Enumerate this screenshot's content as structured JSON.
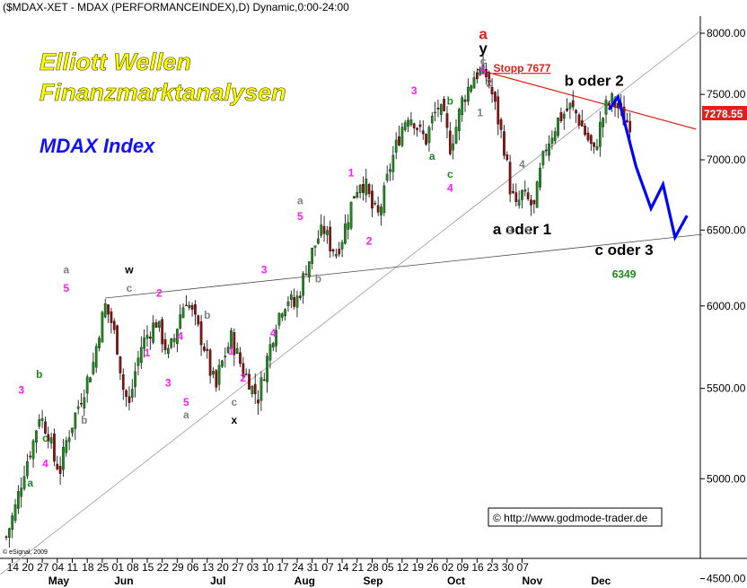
{
  "header": {
    "title": "($MDAX-XET - MDAX (PERFORMANCEINDEX),D) Dynamic,0:00-24:00"
  },
  "branding": {
    "line1": "Elliott Wellen",
    "line2": "Finanzmarktanalysen",
    "index_name": "MDAX Index"
  },
  "footer": {
    "copyright": "© http://www.godmode-trader.de",
    "esignal": "© eSignal, 2009"
  },
  "price_tag": {
    "value": "7278.55",
    "color": "#e0201a"
  },
  "colors": {
    "up_candle": "#1a8a1a",
    "down_candle": "#8b1010",
    "wave_magenta": "#ff1aff",
    "wave_gray": "#808080",
    "wave_green": "#1a8a1a",
    "projection": "#0000ff",
    "stop_line": "#e0201a"
  },
  "chart_data": {
    "type": "candlestick",
    "title": "($MDAX-XET - MDAX (PERFORMANCEINDEX),D) Dynamic,0:00-24:00",
    "y_scale": "log",
    "ylim": [
      4400,
      8200
    ],
    "y_ticks": [
      "4500.00",
      "5000.00",
      "5500.00",
      "6000.00",
      "6500.00",
      "7000.00",
      "7500.00",
      "8000.00"
    ],
    "x_ticks": [
      "14",
      "20",
      "27",
      "04",
      "11",
      "18",
      "25",
      "01",
      "08",
      "15",
      "22",
      "29",
      "06",
      "13",
      "20",
      "27",
      "03",
      "10",
      "17",
      "24",
      "31",
      "07",
      "14",
      "21",
      "28",
      "05",
      "12",
      "19",
      "26",
      "02",
      "09",
      "16",
      "23",
      "30",
      "07"
    ],
    "months": [
      "May",
      "Jun",
      "Jul",
      "Aug",
      "Sep",
      "Oct",
      "Nov",
      "Dec"
    ],
    "grid": false,
    "close_path": [
      [
        0,
        4700
      ],
      [
        3,
        4850
      ],
      [
        6,
        5050
      ],
      [
        9,
        5200
      ],
      [
        11,
        5350
      ],
      [
        14,
        5250
      ],
      [
        16,
        5100
      ],
      [
        18,
        5050
      ],
      [
        20,
        5200
      ],
      [
        23,
        5350
      ],
      [
        26,
        5500
      ],
      [
        29,
        5650
      ],
      [
        31,
        5850
      ],
      [
        33,
        6000
      ],
      [
        35,
        5900
      ],
      [
        37,
        5750
      ],
      [
        39,
        5500
      ],
      [
        41,
        5400
      ],
      [
        43,
        5600
      ],
      [
        45,
        5750
      ],
      [
        48,
        5850
      ],
      [
        50,
        5900
      ],
      [
        52,
        5800
      ],
      [
        54,
        5700
      ],
      [
        56,
        5800
      ],
      [
        58,
        5950
      ],
      [
        60,
        6050
      ],
      [
        62,
        5950
      ],
      [
        64,
        5850
      ],
      [
        66,
        5750
      ],
      [
        68,
        5600
      ],
      [
        70,
        5500
      ],
      [
        71,
        5600
      ],
      [
        73,
        5700
      ],
      [
        75,
        5800
      ],
      [
        77,
        5700
      ],
      [
        79,
        5600
      ],
      [
        81,
        5550
      ],
      [
        82,
        5500
      ],
      [
        84,
        5450
      ],
      [
        86,
        5600
      ],
      [
        88,
        5750
      ],
      [
        90,
        5900
      ],
      [
        92,
        6000
      ],
      [
        94,
        6050
      ],
      [
        96,
        6000
      ],
      [
        98,
        6100
      ],
      [
        100,
        6250
      ],
      [
        102,
        6350
      ],
      [
        104,
        6450
      ],
      [
        106,
        6500
      ],
      [
        108,
        6400
      ],
      [
        110,
        6350
      ],
      [
        112,
        6450
      ],
      [
        114,
        6600
      ],
      [
        116,
        6750
      ],
      [
        118,
        6850
      ],
      [
        120,
        6800
      ],
      [
        122,
        6650
      ],
      [
        124,
        6600
      ],
      [
        126,
        6750
      ],
      [
        128,
        6950
      ],
      [
        130,
        7100
      ],
      [
        132,
        7250
      ],
      [
        134,
        7350
      ],
      [
        136,
        7300
      ],
      [
        138,
        7200
      ],
      [
        140,
        7150
      ],
      [
        142,
        7300
      ],
      [
        144,
        7400
      ],
      [
        146,
        7300
      ],
      [
        148,
        7100
      ],
      [
        150,
        7250
      ],
      [
        152,
        7450
      ],
      [
        154,
        7550
      ],
      [
        156,
        7650
      ],
      [
        158,
        7680
      ],
      [
        160,
        7650
      ],
      [
        162,
        7500
      ],
      [
        164,
        7300
      ],
      [
        166,
        7100
      ],
      [
        168,
        6800
      ],
      [
        170,
        6650
      ],
      [
        172,
        6750
      ],
      [
        174,
        6700
      ],
      [
        176,
        6650
      ],
      [
        178,
        6900
      ],
      [
        180,
        7100
      ],
      [
        182,
        7200
      ],
      [
        184,
        7300
      ],
      [
        186,
        7350
      ],
      [
        188,
        7400
      ],
      [
        190,
        7350
      ],
      [
        192,
        7250
      ],
      [
        194,
        7150
      ],
      [
        196,
        7050
      ],
      [
        198,
        7250
      ],
      [
        200,
        7400
      ],
      [
        202,
        7450
      ],
      [
        204,
        7400
      ],
      [
        206,
        7300
      ],
      [
        208,
        7280
      ]
    ],
    "trendlines": [
      {
        "name": "lower-channel",
        "from": [
          -2,
          4520
        ],
        "to": [
          232,
          8030
        ]
      },
      {
        "name": "wx-line",
        "from": [
          33,
          6050
        ],
        "to": [
          232,
          6470
        ]
      },
      {
        "name": "stopp-line",
        "from": [
          157,
          7700
        ],
        "to": [
          230,
          7230
        ]
      }
    ],
    "projection_path": [
      [
        201,
        7380
      ],
      [
        204,
        7480
      ],
      [
        210,
        6950
      ],
      [
        215,
        6650
      ],
      [
        219,
        6820
      ],
      [
        223,
        6450
      ],
      [
        227,
        6600
      ]
    ],
    "annotations": [
      {
        "text": "a",
        "i": 159,
        "v": 7950,
        "color": "#e0201a",
        "size": "big"
      },
      {
        "text": "y",
        "i": 159,
        "v": 7830,
        "color": "#000000",
        "size": "big"
      },
      {
        "text": "c",
        "i": 159,
        "v": 7740,
        "color": "#808080"
      },
      {
        "text": "5",
        "i": 159,
        "v": 7660,
        "color": "#ff1aff"
      },
      {
        "text": "Stopp 7677",
        "i": 172,
        "v": 7680,
        "color": "#e0201a",
        "size": "stop"
      },
      {
        "text": "b oder 2",
        "i": 196,
        "v": 7570,
        "color": "#000000",
        "size": "big"
      },
      {
        "text": "a oder 1",
        "i": 172,
        "v": 6470,
        "color": "#000000",
        "size": "big"
      },
      {
        "text": "c oder 3",
        "i": 206,
        "v": 6330,
        "color": "#000000",
        "size": "big"
      },
      {
        "text": "6349",
        "i": 206,
        "v": 6180,
        "color": "#1a8a1a",
        "size": "mid"
      },
      {
        "text": "3",
        "i": 136,
        "v": 7500,
        "color": "#ff1aff"
      },
      {
        "text": "b",
        "i": 148,
        "v": 7420,
        "color": "#1a8a1a"
      },
      {
        "text": "a",
        "i": 142,
        "v": 7000,
        "color": "#1a8a1a"
      },
      {
        "text": "c",
        "i": 148,
        "v": 6870,
        "color": "#1a8a1a"
      },
      {
        "text": "4",
        "i": 148,
        "v": 6770,
        "color": "#ff1aff"
      },
      {
        "text": "2",
        "i": 161,
        "v": 7560,
        "color": "#808080",
        "size": "mid"
      },
      {
        "text": "1",
        "i": 158,
        "v": 7330,
        "color": "#808080",
        "size": "mid"
      },
      {
        "text": "4",
        "i": 172,
        "v": 6940,
        "color": "#808080",
        "size": "mid"
      },
      {
        "text": "3",
        "i": 168,
        "v": 6470,
        "color": "#808080",
        "size": "mid"
      },
      {
        "text": "5",
        "i": 174,
        "v": 6470,
        "color": "#808080",
        "size": "mid"
      },
      {
        "text": "1",
        "i": 115,
        "v": 6880,
        "color": "#ff1aff"
      },
      {
        "text": "a",
        "i": 98,
        "v": 6680,
        "color": "#808080"
      },
      {
        "text": "5",
        "i": 98,
        "v": 6570,
        "color": "#ff1aff"
      },
      {
        "text": "b",
        "i": 104,
        "v": 6150,
        "color": "#808080"
      },
      {
        "text": "2",
        "i": 121,
        "v": 6400,
        "color": "#ff1aff"
      },
      {
        "text": "3",
        "i": 86,
        "v": 6210,
        "color": "#ff1aff"
      },
      {
        "text": "4",
        "i": 89,
        "v": 5810,
        "color": "#ff1aff"
      },
      {
        "text": "w",
        "i": 41,
        "v": 6210,
        "color": "#000000",
        "size": "mid"
      },
      {
        "text": "c",
        "i": 41,
        "v": 6090,
        "color": "#808080"
      },
      {
        "text": "2",
        "i": 51,
        "v": 6060,
        "color": "#ff1aff"
      },
      {
        "text": "1",
        "i": 47,
        "v": 5690,
        "color": "#ff1aff"
      },
      {
        "text": "b",
        "i": 67,
        "v": 5920,
        "color": "#808080"
      },
      {
        "text": "4",
        "i": 58,
        "v": 5790,
        "color": "#ff1aff"
      },
      {
        "text": "3",
        "i": 54,
        "v": 5510,
        "color": "#ff1aff"
      },
      {
        "text": "5",
        "i": 60,
        "v": 5400,
        "color": "#ff1aff"
      },
      {
        "text": "a",
        "i": 60,
        "v": 5330,
        "color": "#808080"
      },
      {
        "text": "1",
        "i": 75,
        "v": 5700,
        "color": "#ff1aff"
      },
      {
        "text": "2",
        "i": 79,
        "v": 5540,
        "color": "#ff1aff"
      },
      {
        "text": "c",
        "i": 76,
        "v": 5400,
        "color": "#808080"
      },
      {
        "text": "x",
        "i": 76,
        "v": 5300,
        "color": "#000000",
        "size": "mid"
      },
      {
        "text": "a",
        "i": 20,
        "v": 6210,
        "color": "#808080"
      },
      {
        "text": "5",
        "i": 20,
        "v": 6090,
        "color": "#ff1aff"
      },
      {
        "text": "b",
        "i": 26,
        "v": 5300,
        "color": "#808080"
      },
      {
        "text": "3",
        "i": 5,
        "v": 5470,
        "color": "#ff1aff"
      },
      {
        "text": "b",
        "i": 11,
        "v": 5560,
        "color": "#1a8a1a"
      },
      {
        "text": "c",
        "i": 13,
        "v": 5200,
        "color": "#1a8a1a"
      },
      {
        "text": "4",
        "i": 13,
        "v": 5060,
        "color": "#ff1aff"
      },
      {
        "text": "a",
        "i": 8,
        "v": 4960,
        "color": "#1a8a1a"
      }
    ]
  }
}
